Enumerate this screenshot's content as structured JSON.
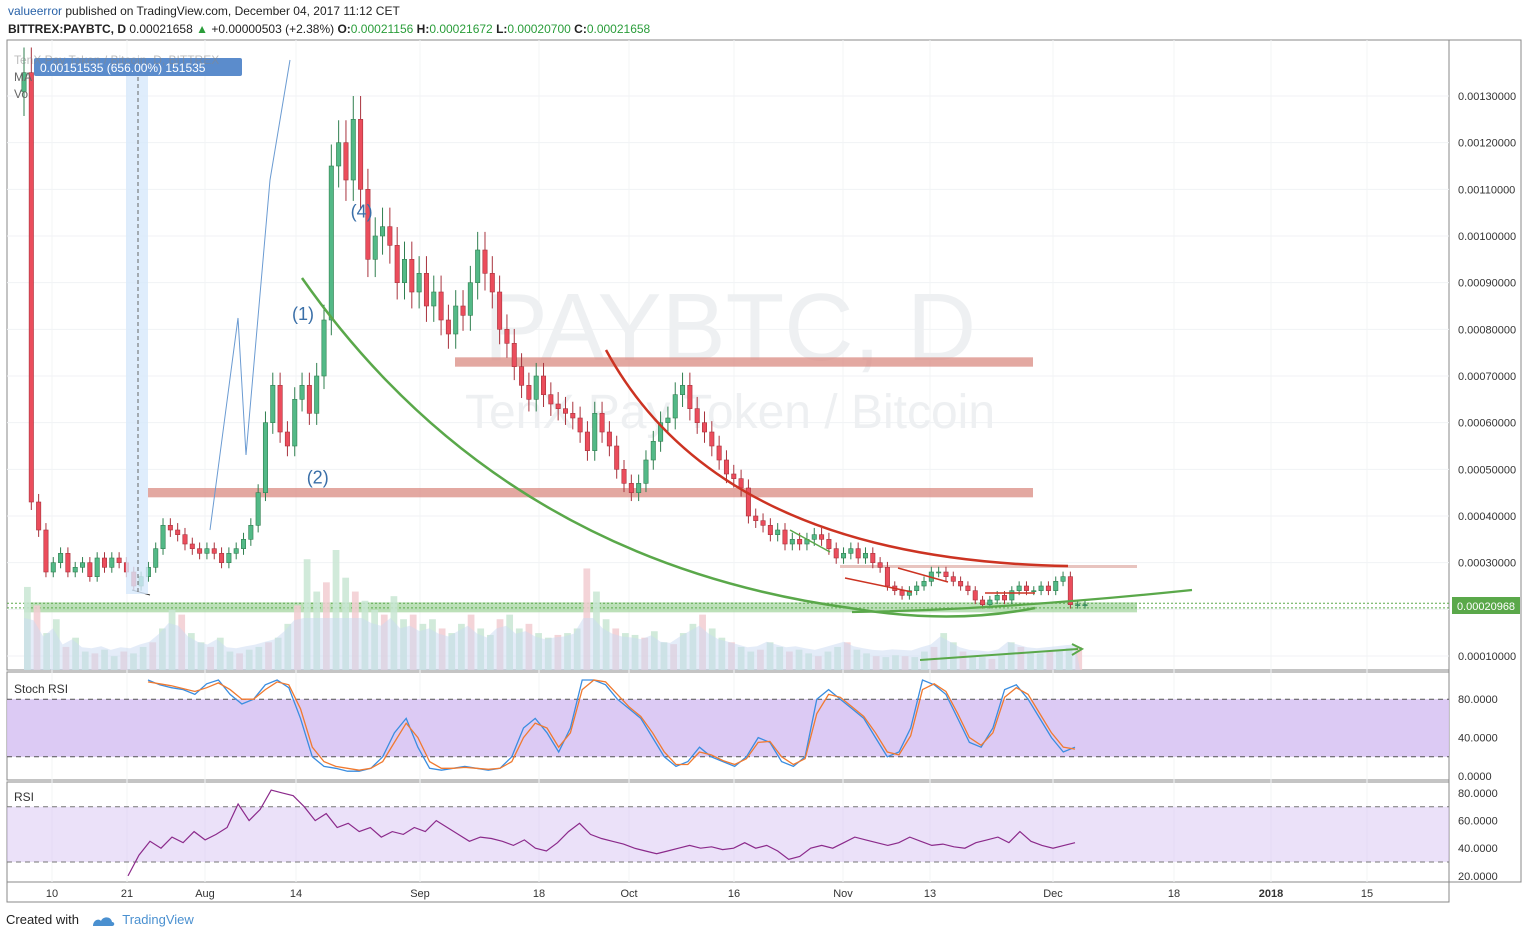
{
  "header": {
    "user": "valueerror",
    "published": "published on TradingView.com, December 04, 2017 11:12 CET",
    "symbol": "BITTREX:PAYBTC, D",
    "price": "0.00021658",
    "change": "+0.00000503 (+2.38%)",
    "open_label": "O:",
    "open": "0.00021156",
    "high_label": "H:",
    "high": "0.00021672",
    "low_label": "L:",
    "low": "0.00020700",
    "close_label": "C:",
    "close": "0.00021658"
  },
  "overlay": {
    "name_fragment": "TenX Pay Token / Bitcoin, D, BITTREX",
    "ma_fragment": "MA",
    "vol_fragment": "Vo",
    "measure_label": "0.00151535 (656.00%) 151535",
    "watermark_symbol": "PAYBTC, D",
    "watermark_name": "TenX Pay Token / Bitcoin"
  },
  "annotations": [
    "(1)",
    "(2)",
    "(4)"
  ],
  "footer": {
    "created_with": "Created with",
    "brand": "TradingView"
  },
  "colors": {
    "up": "#53b987",
    "down": "#eb4d5c",
    "resistance": "#d98b82",
    "support_zone": "#9fd39a",
    "green_curve": "#5aa84a",
    "red_curve": "#cc3322",
    "stoch_k": "#3a8de0",
    "stoch_d": "#f07a30",
    "rsi": "#8b2a8b",
    "band": "#d8c4f3"
  },
  "chart_data": [
    {
      "type": "candlestick",
      "title": "TenX Pay Token / Bitcoin, D, BITTREX",
      "ylabel": "",
      "ylim": [
        7e-05,
        0.00142
      ],
      "y_ticks": [
        "0.00010000",
        "0.00020000",
        "0.00030000",
        "0.00040000",
        "0.00050000",
        "0.00060000",
        "0.00070000",
        "0.00080000",
        "0.00090000",
        "0.00100000",
        "0.00110000",
        "0.00120000",
        "0.00130000"
      ],
      "last_price_label": "0.00020968",
      "x_ticks": [
        "10",
        "21",
        "Aug",
        "14",
        "Sep",
        "18",
        "Oct",
        "16",
        "Nov",
        "13",
        "Dec",
        "18",
        "2018",
        "15"
      ],
      "close_series": [
        0.00135,
        0.00043,
        0.00037,
        0.00028,
        0.0003,
        0.00032,
        0.00028,
        0.00029,
        0.0003,
        0.00027,
        0.00031,
        0.00029,
        0.00031,
        0.0003,
        0.00028,
        0.00025,
        0.00027,
        0.00029,
        0.00033,
        0.00038,
        0.00037,
        0.00036,
        0.00034,
        0.00033,
        0.00032,
        0.00033,
        0.00032,
        0.0003,
        0.00032,
        0.00033,
        0.00035,
        0.00038,
        0.00045,
        0.0006,
        0.00068,
        0.00058,
        0.00055,
        0.00065,
        0.00068,
        0.00062,
        0.0007,
        0.00082,
        0.00115,
        0.0012,
        0.00112,
        0.00125,
        0.0011,
        0.00095,
        0.001,
        0.00102,
        0.00098,
        0.0009,
        0.00095,
        0.00088,
        0.00092,
        0.00085,
        0.00088,
        0.00082,
        0.00079,
        0.00085,
        0.00083,
        0.0009,
        0.00097,
        0.00092,
        0.00088,
        0.0008,
        0.00077,
        0.00072,
        0.00068,
        0.00065,
        0.0007,
        0.00066,
        0.00064,
        0.00063,
        0.00062,
        0.00061,
        0.00058,
        0.00054,
        0.00062,
        0.00058,
        0.00055,
        0.0005,
        0.00047,
        0.00045,
        0.00047,
        0.00052,
        0.00056,
        0.0006,
        0.00061,
        0.00066,
        0.00068,
        0.00063,
        0.0006,
        0.00058,
        0.00055,
        0.00052,
        0.00049,
        0.00048,
        0.00046,
        0.0004,
        0.00039,
        0.00038,
        0.00036,
        0.00037,
        0.00034,
        0.00035,
        0.00034,
        0.00035,
        0.00036,
        0.00035,
        0.00033,
        0.00031,
        0.00032,
        0.00033,
        0.00031,
        0.00032,
        0.0003,
        0.00029,
        0.00025,
        0.00024,
        0.00023,
        0.00024,
        0.00025,
        0.00026,
        0.00028,
        0.00028,
        0.00027,
        0.00026,
        0.00025,
        0.00024,
        0.00022,
        0.00021,
        0.00022,
        0.00023,
        0.00022,
        0.00024,
        0.00025,
        0.00024,
        0.00024,
        0.00025,
        0.00024,
        0.00026,
        0.00027,
        0.00021,
        0.00021,
        0.00021
      ],
      "annotations": [
        {
          "label": "(1)",
          "date_index": 38,
          "price": 0.00082
        },
        {
          "label": "(2)",
          "date_index": 40,
          "price": 0.00047
        },
        {
          "label": "(4)",
          "date_index": 46,
          "price": 0.00104
        }
      ],
      "resistance_zones": [
        {
          "from": 0.00072,
          "to": 0.00074
        },
        {
          "from": 0.00044,
          "to": 0.00046
        }
      ],
      "support_zone": {
        "from": 0.000195,
        "to": 0.000215
      }
    },
    {
      "type": "line",
      "title": "Stoch RSI",
      "ylim": [
        0,
        100
      ],
      "y_ticks": [
        "0.0000",
        "40.0000",
        "80.0000"
      ],
      "band": [
        20,
        80
      ],
      "series": [
        {
          "name": "K",
          "values": [
            100,
            95,
            92,
            90,
            85,
            96,
            100,
            85,
            75,
            80,
            95,
            100,
            92,
            60,
            20,
            10,
            8,
            5,
            5,
            8,
            20,
            45,
            60,
            30,
            8,
            6,
            8,
            10,
            8,
            6,
            8,
            20,
            50,
            60,
            45,
            25,
            50,
            100,
            100,
            95,
            80,
            70,
            60,
            40,
            20,
            10,
            15,
            30,
            20,
            15,
            10,
            20,
            40,
            35,
            15,
            10,
            20,
            80,
            90,
            80,
            70,
            60,
            40,
            20,
            25,
            50,
            100,
            95,
            85,
            60,
            35,
            30,
            50,
            90,
            95,
            80,
            60,
            40,
            25,
            30
          ]
        },
        {
          "name": "D",
          "values": [
            98,
            96,
            94,
            91,
            88,
            92,
            97,
            90,
            80,
            80,
            90,
            98,
            95,
            70,
            30,
            15,
            10,
            8,
            6,
            8,
            15,
            35,
            55,
            40,
            15,
            8,
            8,
            9,
            8,
            7,
            8,
            15,
            40,
            55,
            50,
            30,
            45,
            90,
            100,
            98,
            85,
            72,
            62,
            45,
            25,
            12,
            12,
            25,
            22,
            16,
            12,
            18,
            35,
            36,
            20,
            12,
            18,
            65,
            85,
            82,
            72,
            62,
            45,
            25,
            22,
            42,
            90,
            96,
            88,
            65,
            40,
            32,
            45,
            82,
            92,
            85,
            65,
            45,
            30,
            28
          ]
        }
      ]
    },
    {
      "type": "line",
      "title": "RSI",
      "ylim": [
        17,
        85
      ],
      "y_ticks": [
        "20.0000",
        "40.0000",
        "60.0000",
        "80.0000"
      ],
      "band": [
        30,
        70
      ],
      "series": [
        {
          "name": "",
          "values": [
            20,
            35,
            45,
            40,
            48,
            44,
            52,
            46,
            50,
            55,
            72,
            60,
            68,
            82,
            80,
            78,
            70,
            60,
            65,
            55,
            58,
            52,
            55,
            48,
            52,
            50,
            55,
            52,
            60,
            55,
            50,
            45,
            48,
            47,
            45,
            42,
            46,
            40,
            38,
            44,
            52,
            58,
            50,
            47,
            45,
            43,
            40,
            38,
            36,
            38,
            40,
            42,
            40,
            41,
            39,
            40,
            44,
            40,
            42,
            38,
            32,
            34,
            40,
            42,
            40,
            44,
            48,
            46,
            44,
            42,
            44,
            48,
            45,
            42,
            43,
            41,
            40,
            44,
            46,
            48,
            44,
            52,
            45,
            42,
            40,
            42,
            44
          ]
        }
      ]
    },
    {
      "type": "bar",
      "title": "Volume",
      "values": [
        90,
        70,
        40,
        55,
        25,
        35,
        20,
        18,
        22,
        15,
        20,
        18,
        25,
        30,
        45,
        65,
        60,
        40,
        30,
        25,
        35,
        20,
        18,
        22,
        25,
        30,
        35,
        50,
        70,
        120,
        85,
        95,
        130,
        100,
        85,
        75,
        65,
        60,
        80,
        55,
        60,
        50,
        55,
        45,
        40,
        50,
        60,
        45,
        38,
        55,
        60,
        45,
        50,
        40,
        35,
        38,
        40,
        45,
        110,
        85,
        55,
        45,
        40,
        38,
        35,
        42,
        30,
        28,
        40,
        50,
        60,
        45,
        35,
        30,
        25,
        20,
        22,
        30,
        25,
        20,
        22,
        18,
        15,
        20,
        25,
        30,
        22,
        18,
        15,
        14,
        16,
        15,
        14,
        20,
        25,
        40,
        30,
        20,
        15,
        14,
        12,
        16,
        30,
        25,
        20,
        18,
        20,
        22,
        24,
        25
      ]
    }
  ]
}
